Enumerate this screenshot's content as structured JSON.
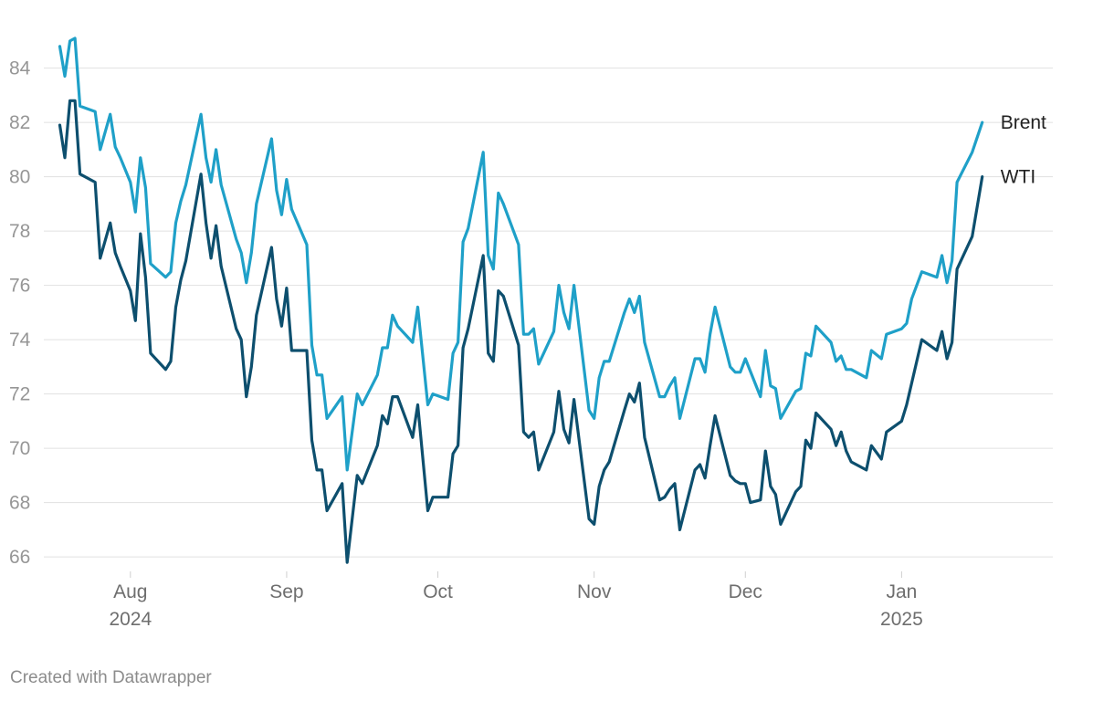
{
  "chart_data": {
    "type": "line",
    "title": "",
    "xlabel": "",
    "ylabel": "",
    "ylim": [
      65.5,
      85.5
    ],
    "xlim": [
      "2024-07-17",
      "2025-01-31"
    ],
    "y_ticks": [
      66,
      68,
      70,
      72,
      74,
      76,
      78,
      80,
      82,
      84
    ],
    "x_ticks": [
      {
        "date": "2024-08-01",
        "label": "Aug",
        "sub": "2024"
      },
      {
        "date": "2024-09-01",
        "label": "Sep",
        "sub": ""
      },
      {
        "date": "2024-10-01",
        "label": "Oct",
        "sub": ""
      },
      {
        "date": "2024-11-01",
        "label": "Nov",
        "sub": ""
      },
      {
        "date": "2024-12-01",
        "label": "Dec",
        "sub": ""
      },
      {
        "date": "2025-01-01",
        "label": "Jan",
        "sub": "2025"
      }
    ],
    "grid": true,
    "legend": "direct labels at line ends (right)",
    "series": [
      {
        "name": "Brent",
        "color": "#1fa0c8",
        "points": [
          [
            "2024-07-18",
            84.8
          ],
          [
            "2024-07-19",
            83.7
          ],
          [
            "2024-07-20",
            85.0
          ],
          [
            "2024-07-21",
            85.1
          ],
          [
            "2024-07-22",
            82.6
          ],
          [
            "2024-07-25",
            82.4
          ],
          [
            "2024-07-26",
            81.0
          ],
          [
            "2024-07-28",
            82.3
          ],
          [
            "2024-07-29",
            81.1
          ],
          [
            "2024-07-30",
            80.7
          ],
          [
            "2024-08-01",
            79.8
          ],
          [
            "2024-08-02",
            78.7
          ],
          [
            "2024-08-03",
            80.7
          ],
          [
            "2024-08-04",
            79.6
          ],
          [
            "2024-08-05",
            76.8
          ],
          [
            "2024-08-08",
            76.3
          ],
          [
            "2024-08-09",
            76.5
          ],
          [
            "2024-08-10",
            78.3
          ],
          [
            "2024-08-11",
            79.1
          ],
          [
            "2024-08-12",
            79.7
          ],
          [
            "2024-08-15",
            82.3
          ],
          [
            "2024-08-16",
            80.7
          ],
          [
            "2024-08-17",
            79.8
          ],
          [
            "2024-08-18",
            81.0
          ],
          [
            "2024-08-19",
            79.7
          ],
          [
            "2024-08-22",
            77.7
          ],
          [
            "2024-08-23",
            77.2
          ],
          [
            "2024-08-24",
            76.1
          ],
          [
            "2024-08-25",
            77.2
          ],
          [
            "2024-08-26",
            79.0
          ],
          [
            "2024-08-29",
            81.4
          ],
          [
            "2024-08-30",
            79.5
          ],
          [
            "2024-08-31",
            78.6
          ],
          [
            "2024-09-01",
            79.9
          ],
          [
            "2024-09-02",
            78.8
          ],
          [
            "2024-09-05",
            77.5
          ],
          [
            "2024-09-06",
            73.8
          ],
          [
            "2024-09-07",
            72.7
          ],
          [
            "2024-09-08",
            72.7
          ],
          [
            "2024-09-09",
            71.1
          ],
          [
            "2024-09-12",
            71.9
          ],
          [
            "2024-09-13",
            69.2
          ],
          [
            "2024-09-15",
            72.0
          ],
          [
            "2024-09-16",
            71.6
          ],
          [
            "2024-09-19",
            72.7
          ],
          [
            "2024-09-20",
            73.7
          ],
          [
            "2024-09-21",
            73.7
          ],
          [
            "2024-09-22",
            74.9
          ],
          [
            "2024-09-23",
            74.5
          ],
          [
            "2024-09-26",
            73.9
          ],
          [
            "2024-09-27",
            75.2
          ],
          [
            "2024-09-29",
            71.6
          ],
          [
            "2024-09-30",
            72.0
          ],
          [
            "2024-10-03",
            71.8
          ],
          [
            "2024-10-04",
            73.5
          ],
          [
            "2024-10-05",
            73.9
          ],
          [
            "2024-10-06",
            77.6
          ],
          [
            "2024-10-07",
            78.1
          ],
          [
            "2024-10-10",
            80.9
          ],
          [
            "2024-10-11",
            77.1
          ],
          [
            "2024-10-12",
            76.6
          ],
          [
            "2024-10-13",
            79.4
          ],
          [
            "2024-10-14",
            79.0
          ],
          [
            "2024-10-17",
            77.5
          ],
          [
            "2024-10-18",
            74.2
          ],
          [
            "2024-10-19",
            74.2
          ],
          [
            "2024-10-20",
            74.4
          ],
          [
            "2024-10-21",
            73.1
          ],
          [
            "2024-10-24",
            74.3
          ],
          [
            "2024-10-25",
            76.0
          ],
          [
            "2024-10-26",
            75.0
          ],
          [
            "2024-10-27",
            74.4
          ],
          [
            "2024-10-28",
            76.0
          ],
          [
            "2024-10-31",
            71.4
          ],
          [
            "2024-11-01",
            71.1
          ],
          [
            "2024-11-02",
            72.6
          ],
          [
            "2024-11-03",
            73.2
          ],
          [
            "2024-11-04",
            73.2
          ],
          [
            "2024-11-07",
            75.0
          ],
          [
            "2024-11-08",
            75.5
          ],
          [
            "2024-11-09",
            75.0
          ],
          [
            "2024-11-10",
            75.6
          ],
          [
            "2024-11-11",
            73.9
          ],
          [
            "2024-11-14",
            71.9
          ],
          [
            "2024-11-15",
            71.9
          ],
          [
            "2024-11-16",
            72.3
          ],
          [
            "2024-11-17",
            72.6
          ],
          [
            "2024-11-18",
            71.1
          ],
          [
            "2024-11-21",
            73.3
          ],
          [
            "2024-11-22",
            73.3
          ],
          [
            "2024-11-23",
            72.8
          ],
          [
            "2024-11-24",
            74.2
          ],
          [
            "2024-11-25",
            75.2
          ],
          [
            "2024-11-28",
            73.0
          ],
          [
            "2024-11-29",
            72.8
          ],
          [
            "2024-11-30",
            72.8
          ],
          [
            "2024-12-01",
            73.3
          ],
          [
            "2024-12-04",
            71.9
          ],
          [
            "2024-12-05",
            73.6
          ],
          [
            "2024-12-06",
            72.3
          ],
          [
            "2024-12-07",
            72.2
          ],
          [
            "2024-12-08",
            71.1
          ],
          [
            "2024-12-11",
            72.1
          ],
          [
            "2024-12-12",
            72.2
          ],
          [
            "2024-12-13",
            73.5
          ],
          [
            "2024-12-14",
            73.4
          ],
          [
            "2024-12-15",
            74.5
          ],
          [
            "2024-12-18",
            73.9
          ],
          [
            "2024-12-19",
            73.2
          ],
          [
            "2024-12-20",
            73.4
          ],
          [
            "2024-12-21",
            72.9
          ],
          [
            "2024-12-22",
            72.9
          ],
          [
            "2024-12-25",
            72.6
          ],
          [
            "2024-12-26",
            73.6
          ],
          [
            "2024-12-28",
            73.3
          ],
          [
            "2024-12-29",
            74.2
          ],
          [
            "2025-01-01",
            74.4
          ],
          [
            "2025-01-02",
            74.6
          ],
          [
            "2025-01-03",
            75.5
          ],
          [
            "2025-01-05",
            76.5
          ],
          [
            "2025-01-08",
            76.3
          ],
          [
            "2025-01-09",
            77.1
          ],
          [
            "2025-01-10",
            76.1
          ],
          [
            "2025-01-11",
            76.9
          ],
          [
            "2025-01-12",
            79.8
          ],
          [
            "2025-01-15",
            80.9
          ],
          [
            "2025-01-17",
            82.0
          ]
        ]
      },
      {
        "name": "WTI",
        "color": "#0d4f6e",
        "points": [
          [
            "2024-07-18",
            81.9
          ],
          [
            "2024-07-19",
            80.7
          ],
          [
            "2024-07-20",
            82.8
          ],
          [
            "2024-07-21",
            82.8
          ],
          [
            "2024-07-22",
            80.1
          ],
          [
            "2024-07-25",
            79.8
          ],
          [
            "2024-07-26",
            77.0
          ],
          [
            "2024-07-28",
            78.3
          ],
          [
            "2024-07-29",
            77.2
          ],
          [
            "2024-07-30",
            76.7
          ],
          [
            "2024-08-01",
            75.8
          ],
          [
            "2024-08-02",
            74.7
          ],
          [
            "2024-08-03",
            77.9
          ],
          [
            "2024-08-04",
            76.3
          ],
          [
            "2024-08-05",
            73.5
          ],
          [
            "2024-08-08",
            72.9
          ],
          [
            "2024-08-09",
            73.2
          ],
          [
            "2024-08-10",
            75.2
          ],
          [
            "2024-08-11",
            76.2
          ],
          [
            "2024-08-12",
            76.9
          ],
          [
            "2024-08-15",
            80.1
          ],
          [
            "2024-08-16",
            78.3
          ],
          [
            "2024-08-17",
            77.0
          ],
          [
            "2024-08-18",
            78.2
          ],
          [
            "2024-08-19",
            76.7
          ],
          [
            "2024-08-22",
            74.4
          ],
          [
            "2024-08-23",
            74.0
          ],
          [
            "2024-08-24",
            71.9
          ],
          [
            "2024-08-25",
            73.0
          ],
          [
            "2024-08-26",
            74.9
          ],
          [
            "2024-08-29",
            77.4
          ],
          [
            "2024-08-30",
            75.5
          ],
          [
            "2024-08-31",
            74.5
          ],
          [
            "2024-09-01",
            75.9
          ],
          [
            "2024-09-02",
            73.6
          ],
          [
            "2024-09-05",
            73.6
          ],
          [
            "2024-09-06",
            70.3
          ],
          [
            "2024-09-07",
            69.2
          ],
          [
            "2024-09-08",
            69.2
          ],
          [
            "2024-09-09",
            67.7
          ],
          [
            "2024-09-12",
            68.7
          ],
          [
            "2024-09-13",
            65.8
          ],
          [
            "2024-09-15",
            69.0
          ],
          [
            "2024-09-16",
            68.7
          ],
          [
            "2024-09-19",
            70.1
          ],
          [
            "2024-09-20",
            71.2
          ],
          [
            "2024-09-21",
            70.9
          ],
          [
            "2024-09-22",
            71.9
          ],
          [
            "2024-09-23",
            71.9
          ],
          [
            "2024-09-26",
            70.4
          ],
          [
            "2024-09-27",
            71.6
          ],
          [
            "2024-09-29",
            67.7
          ],
          [
            "2024-09-30",
            68.2
          ],
          [
            "2024-10-03",
            68.2
          ],
          [
            "2024-10-04",
            69.8
          ],
          [
            "2024-10-05",
            70.1
          ],
          [
            "2024-10-06",
            73.7
          ],
          [
            "2024-10-07",
            74.4
          ],
          [
            "2024-10-10",
            77.1
          ],
          [
            "2024-10-11",
            73.5
          ],
          [
            "2024-10-12",
            73.2
          ],
          [
            "2024-10-13",
            75.8
          ],
          [
            "2024-10-14",
            75.6
          ],
          [
            "2024-10-17",
            73.8
          ],
          [
            "2024-10-18",
            70.6
          ],
          [
            "2024-10-19",
            70.4
          ],
          [
            "2024-10-20",
            70.6
          ],
          [
            "2024-10-21",
            69.2
          ],
          [
            "2024-10-24",
            70.6
          ],
          [
            "2024-10-25",
            72.1
          ],
          [
            "2024-10-26",
            70.7
          ],
          [
            "2024-10-27",
            70.2
          ],
          [
            "2024-10-28",
            71.8
          ],
          [
            "2024-10-31",
            67.4
          ],
          [
            "2024-11-01",
            67.2
          ],
          [
            "2024-11-02",
            68.6
          ],
          [
            "2024-11-03",
            69.2
          ],
          [
            "2024-11-04",
            69.5
          ],
          [
            "2024-11-07",
            71.4
          ],
          [
            "2024-11-08",
            72.0
          ],
          [
            "2024-11-09",
            71.7
          ],
          [
            "2024-11-10",
            72.4
          ],
          [
            "2024-11-11",
            70.4
          ],
          [
            "2024-11-14",
            68.1
          ],
          [
            "2024-11-15",
            68.2
          ],
          [
            "2024-11-16",
            68.5
          ],
          [
            "2024-11-17",
            68.7
          ],
          [
            "2024-11-18",
            67.0
          ],
          [
            "2024-11-21",
            69.2
          ],
          [
            "2024-11-22",
            69.4
          ],
          [
            "2024-11-23",
            68.9
          ],
          [
            "2024-11-24",
            70.1
          ],
          [
            "2024-11-25",
            71.2
          ],
          [
            "2024-11-28",
            69.0
          ],
          [
            "2024-11-29",
            68.8
          ],
          [
            "2024-11-30",
            68.7
          ],
          [
            "2024-12-01",
            68.7
          ],
          [
            "2024-12-02",
            68.0
          ],
          [
            "2024-12-04",
            68.1
          ],
          [
            "2024-12-05",
            69.9
          ],
          [
            "2024-12-06",
            68.6
          ],
          [
            "2024-12-07",
            68.3
          ],
          [
            "2024-12-08",
            67.2
          ],
          [
            "2024-12-11",
            68.4
          ],
          [
            "2024-12-12",
            68.6
          ],
          [
            "2024-12-13",
            70.3
          ],
          [
            "2024-12-14",
            70.0
          ],
          [
            "2024-12-15",
            71.3
          ],
          [
            "2024-12-18",
            70.7
          ],
          [
            "2024-12-19",
            70.1
          ],
          [
            "2024-12-20",
            70.6
          ],
          [
            "2024-12-21",
            69.9
          ],
          [
            "2024-12-22",
            69.5
          ],
          [
            "2024-12-25",
            69.2
          ],
          [
            "2024-12-26",
            70.1
          ],
          [
            "2024-12-28",
            69.6
          ],
          [
            "2024-12-29",
            70.6
          ],
          [
            "2025-01-01",
            71.0
          ],
          [
            "2025-01-02",
            71.6
          ],
          [
            "2025-01-05",
            74.0
          ],
          [
            "2025-01-08",
            73.6
          ],
          [
            "2025-01-09",
            74.3
          ],
          [
            "2025-01-10",
            73.3
          ],
          [
            "2025-01-11",
            73.9
          ],
          [
            "2025-01-12",
            76.6
          ],
          [
            "2025-01-15",
            77.8
          ],
          [
            "2025-01-17",
            80.0
          ]
        ]
      }
    ]
  },
  "footer": {
    "credit": "Created with Datawrapper"
  }
}
